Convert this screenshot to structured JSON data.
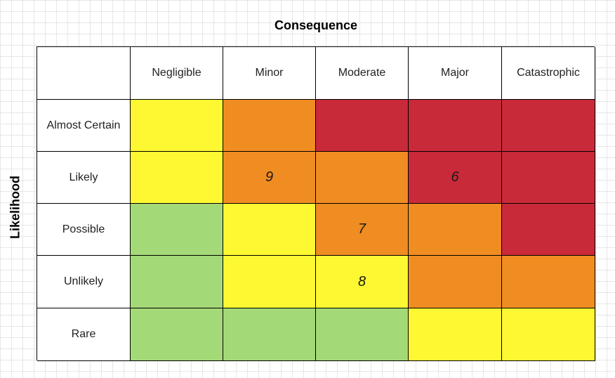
{
  "titles": {
    "consequence": "Consequence",
    "likelihood": "Likelihood"
  },
  "colors": {
    "green": "#a4d977",
    "yellow": "#fdf831",
    "orange": "#f08d22",
    "red": "#c92a39"
  },
  "columns": [
    "Negligible",
    "Minor",
    "Moderate",
    "Major",
    "Catastrophic"
  ],
  "rows": [
    {
      "label": "Almost Certain",
      "cells": [
        {
          "color": "yellow",
          "value": ""
        },
        {
          "color": "orange",
          "value": ""
        },
        {
          "color": "red",
          "value": ""
        },
        {
          "color": "red",
          "value": ""
        },
        {
          "color": "red",
          "value": ""
        }
      ]
    },
    {
      "label": "Likely",
      "cells": [
        {
          "color": "yellow",
          "value": ""
        },
        {
          "color": "orange",
          "value": "9"
        },
        {
          "color": "orange",
          "value": ""
        },
        {
          "color": "red",
          "value": "6"
        },
        {
          "color": "red",
          "value": ""
        }
      ]
    },
    {
      "label": "Possible",
      "cells": [
        {
          "color": "green",
          "value": ""
        },
        {
          "color": "yellow",
          "value": ""
        },
        {
          "color": "orange",
          "value": "7"
        },
        {
          "color": "orange",
          "value": ""
        },
        {
          "color": "red",
          "value": ""
        }
      ]
    },
    {
      "label": "Unlikely",
      "cells": [
        {
          "color": "green",
          "value": ""
        },
        {
          "color": "yellow",
          "value": ""
        },
        {
          "color": "yellow",
          "value": "8"
        },
        {
          "color": "orange",
          "value": ""
        },
        {
          "color": "orange",
          "value": ""
        }
      ]
    },
    {
      "label": "Rare",
      "cells": [
        {
          "color": "green",
          "value": ""
        },
        {
          "color": "green",
          "value": ""
        },
        {
          "color": "green",
          "value": ""
        },
        {
          "color": "yellow",
          "value": ""
        },
        {
          "color": "yellow",
          "value": ""
        }
      ]
    }
  ]
}
